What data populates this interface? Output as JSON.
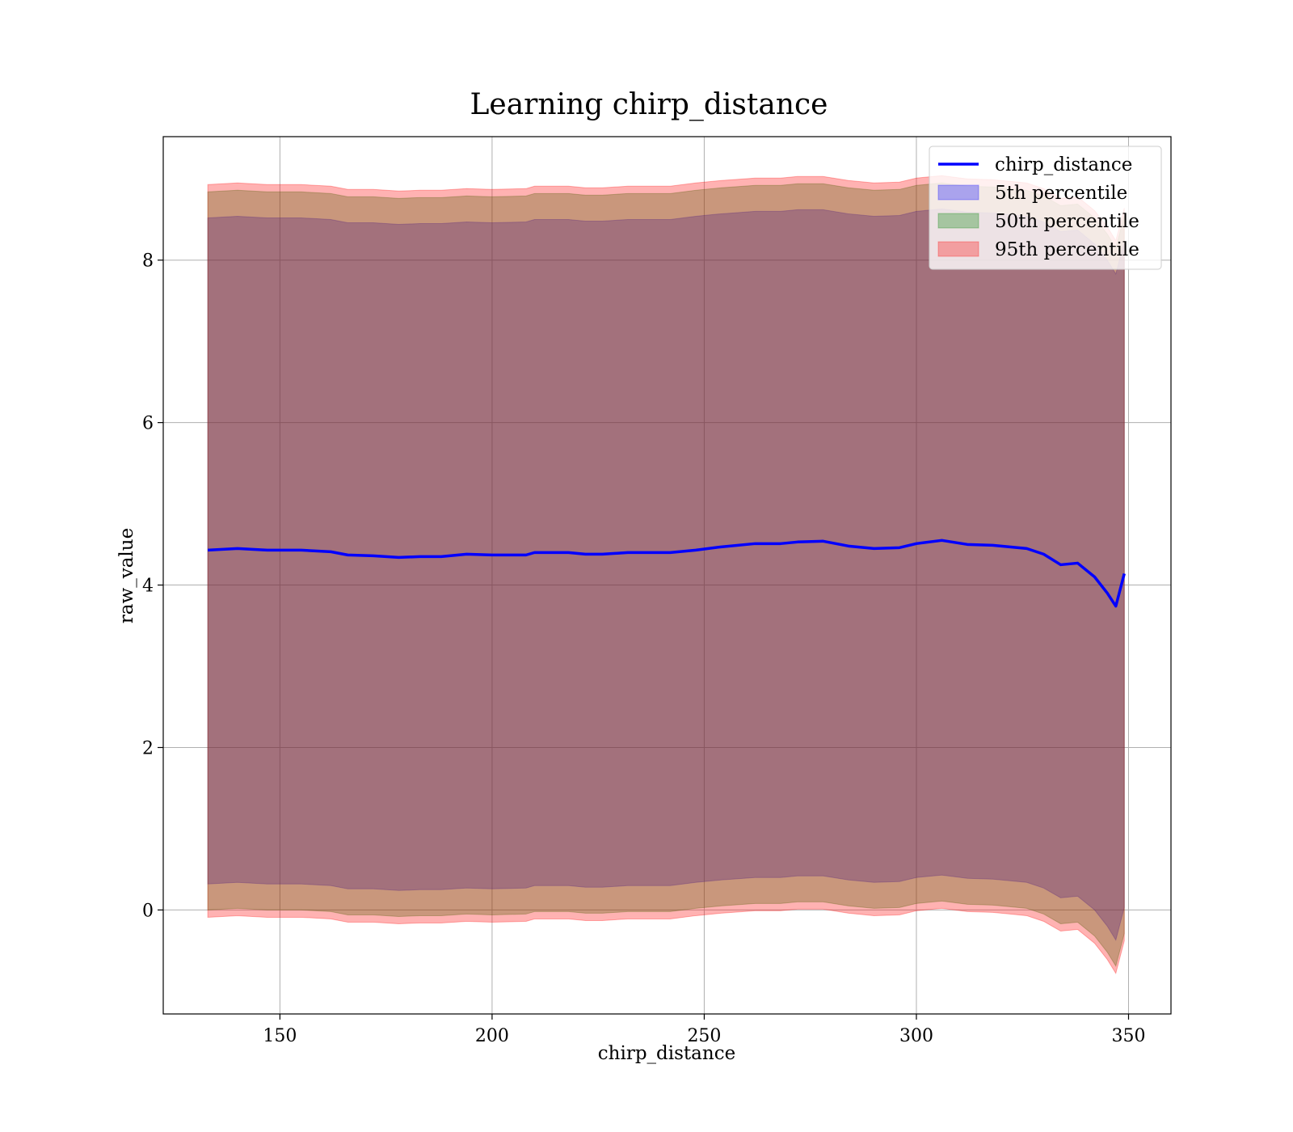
{
  "chart_data": {
    "type": "area",
    "title": "Learning chirp_distance",
    "xlabel": "chirp_distance",
    "ylabel": "raw_value",
    "xlim": [
      122.5,
      360
    ],
    "ylim": [
      -1.28,
      9.52
    ],
    "xticks": [
      150,
      200,
      250,
      300,
      350
    ],
    "yticks": [
      0,
      2,
      4,
      6,
      8
    ],
    "grid": true,
    "legend_position": "top-right",
    "x": [
      133,
      140,
      147,
      155,
      162,
      166,
      172,
      178,
      183,
      188,
      194,
      200,
      208,
      210,
      218,
      222,
      226,
      232,
      238,
      242,
      248,
      254,
      262,
      268,
      272,
      278,
      284,
      290,
      296,
      300,
      306,
      312,
      318,
      322,
      326,
      330,
      334,
      338,
      342,
      345,
      347,
      349
    ],
    "series": [
      {
        "name": "chirp_distance",
        "kind": "line",
        "color": "#0000ff",
        "values": [
          4.43,
          4.45,
          4.43,
          4.43,
          4.41,
          4.37,
          4.36,
          4.34,
          4.35,
          4.35,
          4.38,
          4.37,
          4.37,
          4.4,
          4.4,
          4.38,
          4.38,
          4.4,
          4.4,
          4.4,
          4.43,
          4.47,
          4.51,
          4.51,
          4.53,
          4.54,
          4.48,
          4.45,
          4.46,
          4.51,
          4.55,
          4.5,
          4.49,
          4.47,
          4.45,
          4.38,
          4.25,
          4.27,
          4.1,
          3.9,
          3.74,
          4.14
        ]
      },
      {
        "name": "5th percentile",
        "kind": "band",
        "color": "#0000ff",
        "upper": [
          8.52,
          8.54,
          8.52,
          8.52,
          8.5,
          8.46,
          8.46,
          8.44,
          8.45,
          8.45,
          8.47,
          8.46,
          8.47,
          8.5,
          8.5,
          8.48,
          8.48,
          8.5,
          8.5,
          8.5,
          8.54,
          8.57,
          8.6,
          8.6,
          8.62,
          8.62,
          8.57,
          8.54,
          8.55,
          8.6,
          8.63,
          8.59,
          8.58,
          8.56,
          8.54,
          8.47,
          8.35,
          8.37,
          8.2,
          8.0,
          7.83,
          8.23
        ],
        "lower": [
          0.32,
          0.34,
          0.32,
          0.32,
          0.3,
          0.26,
          0.26,
          0.24,
          0.25,
          0.25,
          0.27,
          0.26,
          0.27,
          0.3,
          0.3,
          0.28,
          0.28,
          0.3,
          0.3,
          0.3,
          0.34,
          0.37,
          0.4,
          0.4,
          0.42,
          0.42,
          0.37,
          0.34,
          0.35,
          0.4,
          0.43,
          0.39,
          0.38,
          0.36,
          0.34,
          0.27,
          0.15,
          0.17,
          0.0,
          -0.2,
          -0.37,
          0.03
        ]
      },
      {
        "name": "50th percentile",
        "kind": "band",
        "color": "#008000",
        "upper": [
          8.84,
          8.86,
          8.84,
          8.84,
          8.82,
          8.78,
          8.78,
          8.76,
          8.77,
          8.77,
          8.79,
          8.78,
          8.79,
          8.82,
          8.82,
          8.8,
          8.8,
          8.82,
          8.82,
          8.82,
          8.86,
          8.89,
          8.92,
          8.92,
          8.94,
          8.94,
          8.89,
          8.86,
          8.87,
          8.92,
          8.95,
          8.91,
          8.9,
          8.88,
          8.86,
          8.79,
          8.67,
          8.69,
          8.52,
          8.32,
          8.15,
          8.55
        ],
        "lower": [
          0.0,
          0.02,
          0.0,
          0.0,
          -0.02,
          -0.06,
          -0.06,
          -0.08,
          -0.07,
          -0.07,
          -0.05,
          -0.06,
          -0.05,
          -0.02,
          -0.02,
          -0.04,
          -0.04,
          -0.02,
          -0.02,
          -0.02,
          0.02,
          0.05,
          0.08,
          0.08,
          0.1,
          0.1,
          0.05,
          0.02,
          0.03,
          0.08,
          0.11,
          0.07,
          0.06,
          0.04,
          0.02,
          -0.05,
          -0.17,
          -0.15,
          -0.32,
          -0.52,
          -0.69,
          -0.29
        ]
      },
      {
        "name": "95th percentile",
        "kind": "band",
        "color": "#ff0000",
        "upper": [
          8.93,
          8.95,
          8.93,
          8.93,
          8.91,
          8.87,
          8.87,
          8.85,
          8.86,
          8.86,
          8.88,
          8.87,
          8.88,
          8.91,
          8.91,
          8.89,
          8.89,
          8.91,
          8.91,
          8.91,
          8.95,
          8.98,
          9.01,
          9.01,
          9.03,
          9.03,
          8.98,
          8.95,
          8.96,
          9.01,
          9.04,
          9.0,
          8.99,
          8.97,
          8.95,
          8.88,
          8.76,
          8.78,
          8.61,
          8.41,
          8.24,
          8.64
        ],
        "lower": [
          -0.09,
          -0.07,
          -0.09,
          -0.09,
          -0.11,
          -0.15,
          -0.15,
          -0.17,
          -0.16,
          -0.16,
          -0.14,
          -0.15,
          -0.14,
          -0.11,
          -0.11,
          -0.13,
          -0.13,
          -0.11,
          -0.11,
          -0.11,
          -0.07,
          -0.04,
          -0.01,
          -0.01,
          0.01,
          0.01,
          -0.04,
          -0.07,
          -0.06,
          -0.01,
          0.02,
          -0.02,
          -0.03,
          -0.05,
          -0.07,
          -0.14,
          -0.26,
          -0.24,
          -0.41,
          -0.61,
          -0.78,
          -0.38
        ]
      }
    ]
  }
}
